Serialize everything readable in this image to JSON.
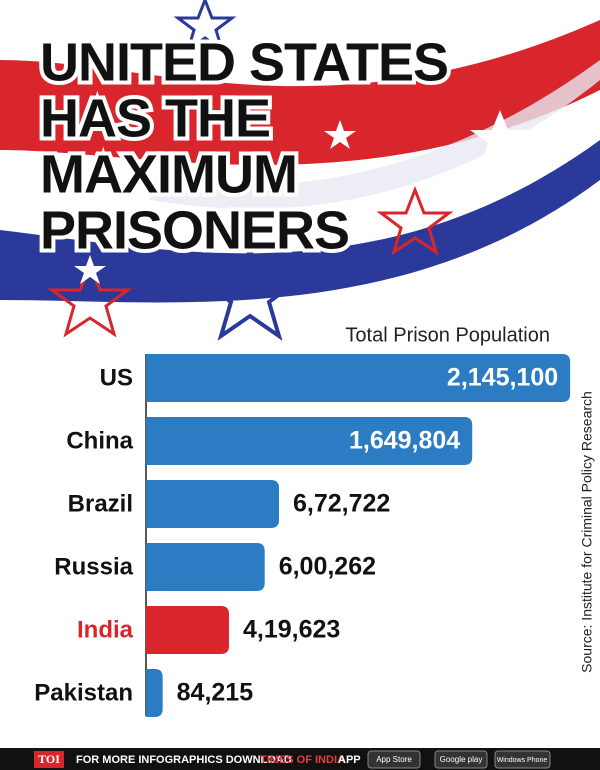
{
  "chart_data": {
    "type": "bar",
    "orientation": "horizontal",
    "title_lines": [
      "UNITED STATES",
      "HAS THE",
      "MAXIMUM",
      "PRISONERS"
    ],
    "subtitle": "Total Prison Population",
    "source": "Source: Institute for Criminal Policy Research",
    "categories": [
      "US",
      "China",
      "Brazil",
      "Russia",
      "India",
      "Pakistan"
    ],
    "values": [
      2145100,
      1649804,
      672722,
      600262,
      419623,
      84215
    ],
    "value_labels": [
      "2,145,100",
      "1,649,804",
      "6,72,722",
      "6,00,262",
      "4,19,623",
      "84,215"
    ],
    "colors": [
      "#2b7cc3",
      "#2b7cc3",
      "#2b7cc3",
      "#2b7cc3",
      "#d8262c",
      "#2b7cc3"
    ],
    "label_colors": [
      "#111111",
      "#111111",
      "#111111",
      "#111111",
      "#d8262c",
      "#111111"
    ],
    "xlim": [
      0,
      2200000
    ]
  },
  "footer": {
    "brand": "TOI",
    "text": "FOR MORE  INFOGRAPHICS DOWNLOAD",
    "app_name": "TIMES OF INDIA",
    "app": "APP",
    "badges": [
      "App Store",
      "Google play",
      "Windows Phone"
    ]
  }
}
